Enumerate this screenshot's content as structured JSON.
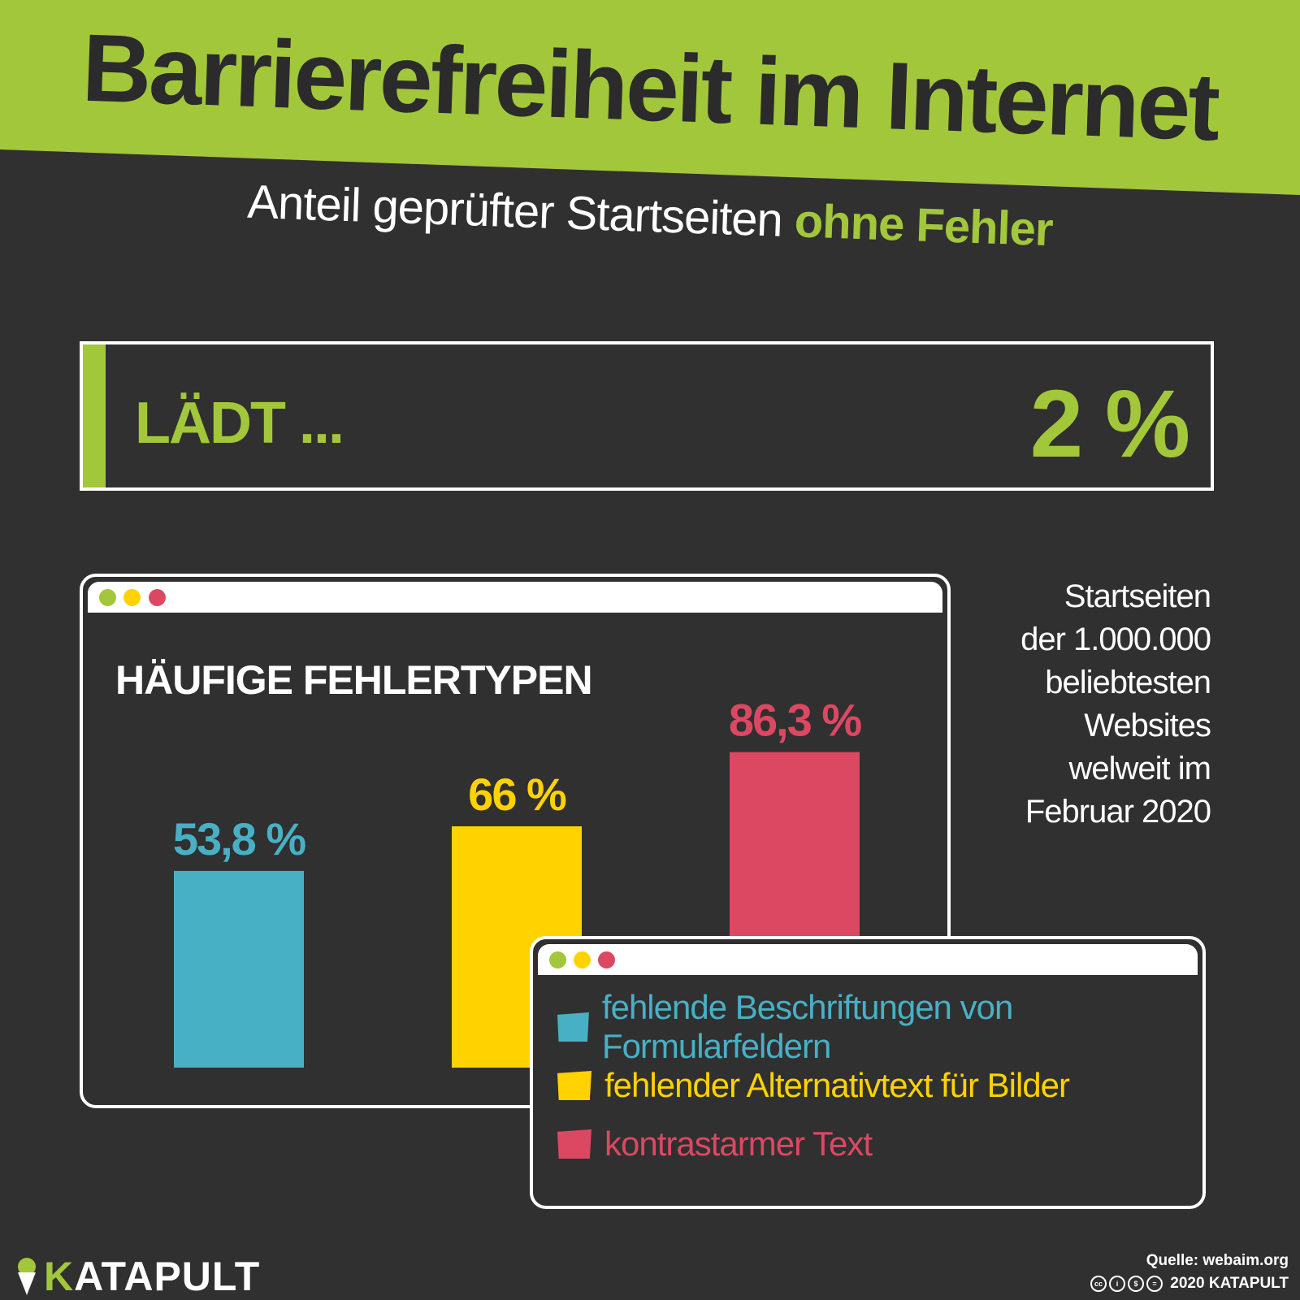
{
  "title": "Barrierefreiheit im Internet",
  "subtitle": {
    "prefix": "Anteil geprüfter Startseiten",
    "highlight": "ohne Fehler"
  },
  "loading": {
    "label": "LÄDT ...",
    "percent_label": "2 %",
    "value": 2
  },
  "chart_data": {
    "type": "bar",
    "title": "HÄUFIGE FEHLERTYPEN",
    "categories": [
      "fehlende Beschriftungen von Formularfeldern",
      "fehlender Alternativtext für Bilder",
      "kontrastarmer Text"
    ],
    "values": [
      53.8,
      66,
      86.3
    ],
    "value_labels": [
      "53,8 %",
      "66 %",
      "86,3 %"
    ],
    "colors": [
      "#48b0c5",
      "#ffd200",
      "#dc4862"
    ],
    "ylim": [
      0,
      100
    ],
    "xlabel": "",
    "ylabel": ""
  },
  "note": [
    "Startseiten",
    "der 1.000.000",
    "beliebtesten",
    "Websites",
    "welweit im",
    "Februar 2020"
  ],
  "window_dots": [
    "#a2c73b",
    "#ffd200",
    "#dc4862"
  ],
  "colors": {
    "accent": "#a2c73b",
    "background": "#303030",
    "title_text": "#2b2b2b"
  },
  "footer": {
    "brand": "KATAPULT",
    "source": "Quelle: webaim.org",
    "license_icons": [
      "cc-icon",
      "by-icon",
      "nc-icon",
      "nd-icon"
    ],
    "copyright": "2020 KATAPULT"
  }
}
